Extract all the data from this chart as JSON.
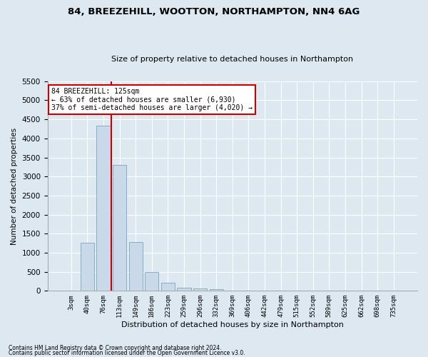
{
  "title": "84, BREEZEHILL, WOOTTON, NORTHAMPTON, NN4 6AG",
  "subtitle": "Size of property relative to detached houses in Northampton",
  "xlabel": "Distribution of detached houses by size in Northampton",
  "ylabel": "Number of detached properties",
  "footnote1": "Contains HM Land Registry data © Crown copyright and database right 2024.",
  "footnote2": "Contains public sector information licensed under the Open Government Licence v3.0.",
  "annotation_line1": "84 BREEZEHILL: 125sqm",
  "annotation_line2": "← 63% of detached houses are smaller (6,930)",
  "annotation_line3": "37% of semi-detached houses are larger (4,020) →",
  "bar_labels": [
    "3sqm",
    "40sqm",
    "76sqm",
    "113sqm",
    "149sqm",
    "186sqm",
    "223sqm",
    "259sqm",
    "296sqm",
    "332sqm",
    "369sqm",
    "406sqm",
    "442sqm",
    "479sqm",
    "515sqm",
    "552sqm",
    "589sqm",
    "625sqm",
    "662sqm",
    "698sqm",
    "735sqm"
  ],
  "bar_values": [
    0,
    1270,
    4340,
    3300,
    1280,
    490,
    220,
    90,
    60,
    50,
    0,
    0,
    0,
    0,
    0,
    0,
    0,
    0,
    0,
    0,
    0
  ],
  "bar_color": "#c9d9e9",
  "bar_edge_color": "#6699bb",
  "vline_color": "#cc0000",
  "ylim": [
    0,
    5500
  ],
  "yticks": [
    0,
    500,
    1000,
    1500,
    2000,
    2500,
    3000,
    3500,
    4000,
    4500,
    5000,
    5500
  ],
  "bg_color": "#dde8f0",
  "grid_color": "#ffffff",
  "annotation_box_color": "#ffffff",
  "annotation_box_edge": "#cc0000"
}
